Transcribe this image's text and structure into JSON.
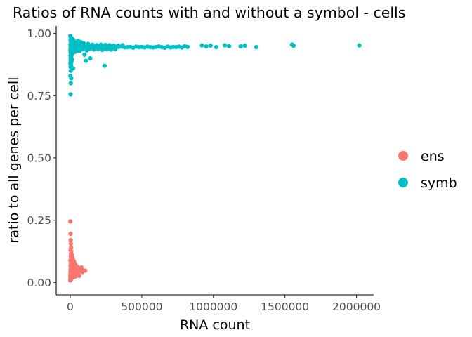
{
  "chart_data": {
    "type": "scatter",
    "title": "Ratios of RNA counts with and without a symbol - cells",
    "xlabel": "RNA count",
    "ylabel": "ratio to all genes per cell",
    "xlim": [
      -98000,
      2120000
    ],
    "ylim": [
      -0.05,
      1.03
    ],
    "x_ticks": [
      0,
      500000,
      1000000,
      1500000,
      2000000
    ],
    "x_tick_labels": [
      "0",
      "500000",
      "1000000",
      "1500000",
      "2000000"
    ],
    "y_ticks": [
      0.0,
      0.25,
      0.5,
      0.75,
      1.0
    ],
    "y_tick_labels": [
      "0.00",
      "0.25",
      "0.50",
      "0.75",
      "1.00"
    ],
    "grid": false,
    "legend_position": "right",
    "series": [
      {
        "name": "ens",
        "color": "#F8766D",
        "points": [
          [
            1200,
            0.245
          ],
          [
            2500,
            0.195
          ],
          [
            3000,
            0.17
          ],
          [
            4000,
            0.155
          ],
          [
            6000,
            0.14
          ],
          [
            2000,
            0.13
          ],
          [
            8000,
            0.125
          ],
          [
            5000,
            0.115
          ],
          [
            12000,
            0.11
          ],
          [
            3500,
            0.105
          ],
          [
            15000,
            0.1
          ],
          [
            7000,
            0.095
          ],
          [
            20000,
            0.09
          ],
          [
            1000,
            0.088
          ],
          [
            25000,
            0.085
          ],
          [
            9000,
            0.082
          ],
          [
            30000,
            0.078
          ],
          [
            4500,
            0.075
          ],
          [
            35000,
            0.072
          ],
          [
            11000,
            0.07
          ],
          [
            40000,
            0.068
          ],
          [
            2200,
            0.066
          ],
          [
            45000,
            0.064
          ],
          [
            16000,
            0.062
          ],
          [
            50000,
            0.06
          ],
          [
            6500,
            0.058
          ],
          [
            55000,
            0.056
          ],
          [
            22000,
            0.055
          ],
          [
            60000,
            0.053
          ],
          [
            3200,
            0.052
          ],
          [
            65000,
            0.05
          ],
          [
            28000,
            0.049
          ],
          [
            70000,
            0.047
          ],
          [
            8500,
            0.046
          ],
          [
            75000,
            0.045
          ],
          [
            33000,
            0.044
          ],
          [
            80000,
            0.043
          ],
          [
            1500,
            0.042
          ],
          [
            85000,
            0.041
          ],
          [
            38000,
            0.04
          ],
          [
            90000,
            0.048
          ],
          [
            105000,
            0.047
          ],
          [
            13000,
            0.039
          ],
          [
            42000,
            0.038
          ],
          [
            5500,
            0.037
          ],
          [
            48000,
            0.036
          ],
          [
            18000,
            0.035
          ],
          [
            2800,
            0.034
          ],
          [
            52000,
            0.033
          ],
          [
            24000,
            0.032
          ],
          [
            7500,
            0.031
          ],
          [
            58000,
            0.03
          ],
          [
            1100,
            0.029
          ],
          [
            30000,
            0.028
          ],
          [
            4200,
            0.027
          ],
          [
            62000,
            0.026
          ],
          [
            10000,
            0.025
          ],
          [
            36000,
            0.024
          ],
          [
            1800,
            0.023
          ],
          [
            14000,
            0.022
          ],
          [
            6000,
            0.021
          ],
          [
            20000,
            0.02
          ],
          [
            3000,
            0.018
          ],
          [
            9000,
            0.016
          ],
          [
            1300,
            0.014
          ],
          [
            5000,
            0.012
          ],
          [
            2400,
            0.01
          ],
          [
            800,
            0.008
          ],
          [
            26000,
            0.043
          ],
          [
            44000,
            0.05
          ],
          [
            68000,
            0.055
          ],
          [
            78000,
            0.06
          ],
          [
            17000,
            0.067
          ],
          [
            32000,
            0.065
          ],
          [
            5200,
            0.062
          ],
          [
            21000,
            0.058
          ],
          [
            46000,
            0.057
          ],
          [
            12500,
            0.053
          ]
        ]
      },
      {
        "name": "symb",
        "color": "#00BFC4",
        "points": [
          [
            1000,
            0.99
          ],
          [
            3000,
            0.985
          ],
          [
            6000,
            0.982
          ],
          [
            10000,
            0.98
          ],
          [
            15000,
            0.978
          ],
          [
            20000,
            0.975
          ],
          [
            2000,
            0.972
          ],
          [
            25000,
            0.97
          ],
          [
            4000,
            0.968
          ],
          [
            30000,
            0.966
          ],
          [
            8000,
            0.964
          ],
          [
            35000,
            0.962
          ],
          [
            12000,
            0.96
          ],
          [
            40000,
            0.958
          ],
          [
            1500,
            0.956
          ],
          [
            45000,
            0.955
          ],
          [
            18000,
            0.953
          ],
          [
            50000,
            0.952
          ],
          [
            5000,
            0.95
          ],
          [
            60000,
            0.95
          ],
          [
            22000,
            0.948
          ],
          [
            70000,
            0.948
          ],
          [
            2500,
            0.946
          ],
          [
            80000,
            0.947
          ],
          [
            28000,
            0.944
          ],
          [
            90000,
            0.946
          ],
          [
            7000,
            0.942
          ],
          [
            100000,
            0.945
          ],
          [
            33000,
            0.94
          ],
          [
            110000,
            0.946
          ],
          [
            3500,
            0.938
          ],
          [
            120000,
            0.944
          ],
          [
            14000,
            0.936
          ],
          [
            130000,
            0.945
          ],
          [
            1200,
            0.934
          ],
          [
            140000,
            0.947
          ],
          [
            9000,
            0.93
          ],
          [
            150000,
            0.944
          ],
          [
            2200,
            0.926
          ],
          [
            160000,
            0.946
          ],
          [
            16000,
            0.922
          ],
          [
            170000,
            0.943
          ],
          [
            4500,
            0.918
          ],
          [
            180000,
            0.947
          ],
          [
            11000,
            0.914
          ],
          [
            190000,
            0.944
          ],
          [
            1800,
            0.91
          ],
          [
            200000,
            0.945
          ],
          [
            6500,
            0.905
          ],
          [
            210000,
            0.946
          ],
          [
            3200,
            0.9
          ],
          [
            220000,
            0.943
          ],
          [
            13000,
            0.895
          ],
          [
            230000,
            0.947
          ],
          [
            2800,
            0.89
          ],
          [
            240000,
            0.945
          ],
          [
            8500,
            0.885
          ],
          [
            250000,
            0.948
          ],
          [
            1600,
            0.88
          ],
          [
            260000,
            0.944
          ],
          [
            5500,
            0.872
          ],
          [
            270000,
            0.946
          ],
          [
            2400,
            0.865
          ],
          [
            280000,
            0.943
          ],
          [
            20000,
            0.86
          ],
          [
            290000,
            0.947
          ],
          [
            3800,
            0.85
          ],
          [
            300000,
            0.945
          ],
          [
            1400,
            0.83
          ],
          [
            320000,
            0.944
          ],
          [
            7500,
            0.82
          ],
          [
            340000,
            0.946
          ],
          [
            4000,
            0.8
          ],
          [
            360000,
            0.948
          ],
          [
            2000,
            0.755
          ],
          [
            380000,
            0.944
          ],
          [
            30000,
            0.925
          ],
          [
            400000,
            0.945
          ],
          [
            45000,
            0.93
          ],
          [
            420000,
            0.946
          ],
          [
            60000,
            0.935
          ],
          [
            440000,
            0.943
          ],
          [
            100000,
            0.915
          ],
          [
            460000,
            0.947
          ],
          [
            110000,
            0.89
          ],
          [
            480000,
            0.945
          ],
          [
            140000,
            0.9
          ],
          [
            500000,
            0.946
          ],
          [
            240000,
            0.87
          ],
          [
            520000,
            0.944
          ],
          [
            540000,
            0.947
          ],
          [
            560000,
            0.945
          ],
          [
            580000,
            0.944
          ],
          [
            600000,
            0.946
          ],
          [
            620000,
            0.948
          ],
          [
            640000,
            0.945
          ],
          [
            660000,
            0.943
          ],
          [
            680000,
            0.947
          ],
          [
            700000,
            0.944
          ],
          [
            720000,
            0.946
          ],
          [
            740000,
            0.945
          ],
          [
            760000,
            0.947
          ],
          [
            780000,
            0.944
          ],
          [
            800000,
            0.949
          ],
          [
            820000,
            0.946
          ],
          [
            920000,
            0.952
          ],
          [
            950000,
            0.948
          ],
          [
            980000,
            0.951
          ],
          [
            1020000,
            0.945
          ],
          [
            1080000,
            0.952
          ],
          [
            1110000,
            0.949
          ],
          [
            1190000,
            0.948
          ],
          [
            1220000,
            0.951
          ],
          [
            1300000,
            0.945
          ],
          [
            1550000,
            0.955
          ],
          [
            1560000,
            0.951
          ],
          [
            2020000,
            0.952
          ],
          [
            55000,
            0.97
          ],
          [
            75000,
            0.965
          ],
          [
            95000,
            0.96
          ],
          [
            125000,
            0.958
          ],
          [
            155000,
            0.955
          ],
          [
            185000,
            0.953
          ],
          [
            215000,
            0.955
          ],
          [
            245000,
            0.954
          ],
          [
            275000,
            0.953
          ],
          [
            305000,
            0.952
          ],
          [
            335000,
            0.951
          ],
          [
            365000,
            0.953
          ],
          [
            38000,
            0.935
          ],
          [
            52000,
            0.94
          ],
          [
            66000,
            0.93
          ],
          [
            85000,
            0.936
          ],
          [
            115000,
            0.932
          ],
          [
            135000,
            0.938
          ],
          [
            165000,
            0.935
          ],
          [
            195000,
            0.937
          ],
          [
            225000,
            0.934
          ],
          [
            255000,
            0.936
          ],
          [
            285000,
            0.935
          ],
          [
            315000,
            0.937
          ]
        ]
      }
    ]
  }
}
